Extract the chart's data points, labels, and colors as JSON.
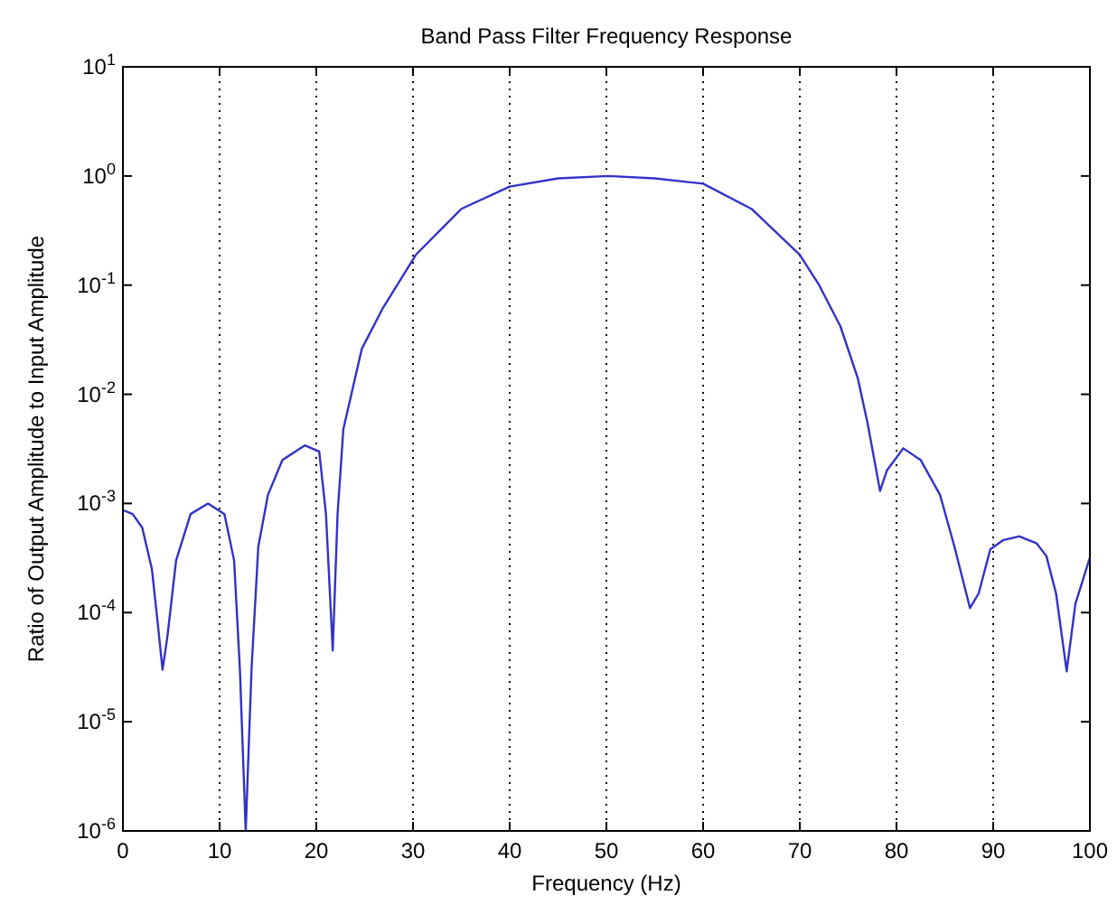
{
  "chart_data": {
    "type": "line",
    "title": "Band Pass Filter Frequency Response",
    "xlabel": "Frequency (Hz)",
    "ylabel": "Ratio of Output Amplitude to Input Amplitude",
    "log": "y",
    "grid": "x",
    "xlim": [
      0,
      100
    ],
    "xticks": [
      0,
      10,
      20,
      30,
      40,
      50,
      60,
      70,
      80,
      90,
      100
    ],
    "ylim": [
      1e-06,
      10
    ],
    "yticks": [
      {
        "value": 1e-06,
        "label": "10$^{-6}$"
      },
      {
        "value": 1e-05,
        "label": "10$^{-5}$"
      },
      {
        "value": 0.0001,
        "label": "10$^{-4}$"
      },
      {
        "value": 0.001,
        "label": "10$^{-3}$"
      },
      {
        "value": 0.01,
        "label": "10$^{-2}$"
      },
      {
        "value": 0.1,
        "label": "10$^{-1}$"
      },
      {
        "value": 1,
        "label": "10$^{0}$"
      },
      {
        "value": 10,
        "label": "10$^{1}$"
      }
    ],
    "series": [
      {
        "color": "#3232c8",
        "x": [
          0,
          1,
          2,
          3,
          3.6,
          4.1,
          4.6,
          5.5,
          7,
          8.8,
          10.5,
          11.5,
          12.1,
          12.7,
          13.3,
          14,
          15,
          16.5,
          18.8,
          20.3,
          21,
          21.7,
          22.2,
          22.8,
          24.7,
          26.9,
          30.3,
          35,
          40,
          45,
          50.2,
          55,
          60,
          65,
          70,
          72,
          74.2,
          76,
          77,
          78.3,
          79,
          80.7,
          82.5,
          84.5,
          86,
          87.6,
          88.5,
          89.7,
          91,
          92.7,
          94.5,
          95.5,
          96.5,
          97.6,
          98.5,
          100
        ],
        "values": [
          0.00087,
          0.0008,
          0.0006,
          0.00025,
          8e-05,
          3e-05,
          6e-05,
          0.0003,
          0.0008,
          0.001,
          0.0008,
          0.0003,
          3e-05,
          1e-06,
          3e-05,
          0.0004,
          0.0012,
          0.0025,
          0.0034,
          0.003,
          0.0008,
          4.5e-05,
          0.0008,
          0.0048,
          0.026,
          0.062,
          0.19,
          0.5,
          0.8,
          0.95,
          1.0,
          0.95,
          0.85,
          0.5,
          0.19,
          0.1,
          0.042,
          0.014,
          0.0055,
          0.0013,
          0.002,
          0.0032,
          0.0025,
          0.0012,
          0.0004,
          0.00011,
          0.00015,
          0.00038,
          0.00046,
          0.0005,
          0.00043,
          0.00033,
          0.00015,
          2.9e-05,
          0.00012,
          0.00032
        ]
      }
    ]
  }
}
